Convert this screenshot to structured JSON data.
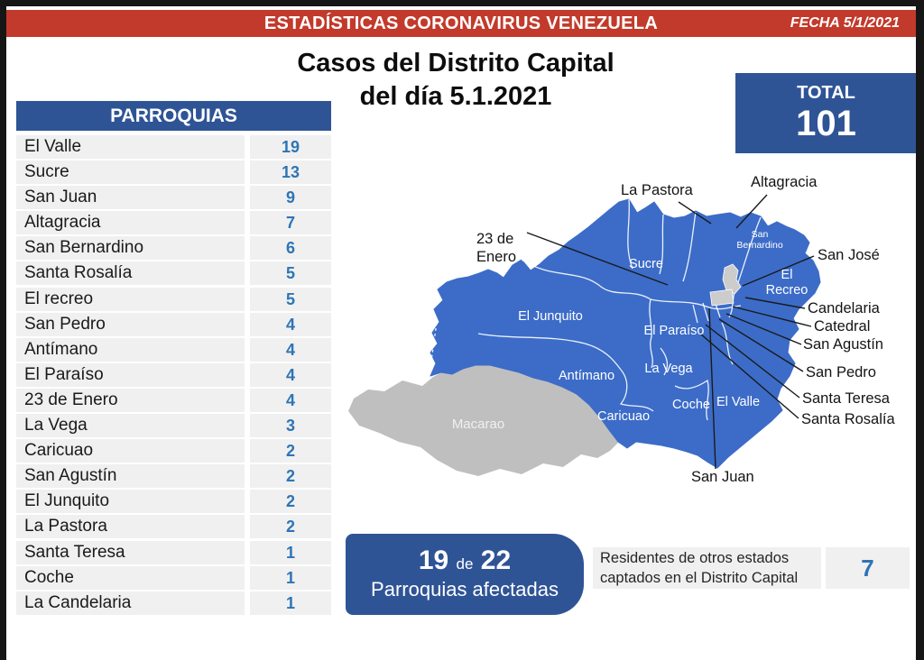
{
  "header": {
    "title": "ESTADÍSTICAS CORONAVIRUS VENEZUELA",
    "date": "FECHA 5/1/2021"
  },
  "title": {
    "line1": "Casos del Distrito Capital",
    "line2": "del día 5.1.2021"
  },
  "total": {
    "label": "TOTAL",
    "value": "101"
  },
  "table": {
    "header": "PARROQUIAS",
    "rows": [
      {
        "name": "El Valle",
        "value": "19"
      },
      {
        "name": "Sucre",
        "value": "13"
      },
      {
        "name": "San Juan",
        "value": "9"
      },
      {
        "name": "Altagracia",
        "value": "7"
      },
      {
        "name": "San Bernardino",
        "value": "6"
      },
      {
        "name": "Santa Rosalía",
        "value": "5"
      },
      {
        "name": "El recreo",
        "value": "5"
      },
      {
        "name": "San Pedro",
        "value": "4"
      },
      {
        "name": "Antímano",
        "value": "4"
      },
      {
        "name": "El Paraíso",
        "value": "4"
      },
      {
        "name": "23 de Enero",
        "value": "4"
      },
      {
        "name": "La Vega",
        "value": "3"
      },
      {
        "name": "Caricuao",
        "value": "2"
      },
      {
        "name": "San Agustín",
        "value": "2"
      },
      {
        "name": "El Junquito",
        "value": "2"
      },
      {
        "name": "La Pastora",
        "value": "2"
      },
      {
        "name": "Santa Teresa",
        "value": "1"
      },
      {
        "name": "Coche",
        "value": "1"
      },
      {
        "name": "La Candelaria",
        "value": "1"
      }
    ]
  },
  "map": {
    "region_labels": [
      {
        "id": "sucre",
        "text": "Sucre",
        "type": "inside"
      },
      {
        "id": "el-junquito",
        "text": "El Junquito",
        "type": "inside"
      },
      {
        "id": "el-paraiso",
        "text": "El Paraíso",
        "type": "inside"
      },
      {
        "id": "antimano",
        "text": "Antímano",
        "type": "inside"
      },
      {
        "id": "la-vega",
        "text": "La Vega",
        "type": "inside"
      },
      {
        "id": "coche",
        "text": "Coche",
        "type": "inside"
      },
      {
        "id": "el-valle",
        "text": "El Valle",
        "type": "inside"
      },
      {
        "id": "caricuao",
        "text": "Caricuao",
        "type": "inside"
      },
      {
        "id": "san-bernardino",
        "text": "San\nBernardino",
        "type": "inside"
      },
      {
        "id": "el-recreo",
        "text": "El\nRecreo",
        "type": "inside"
      },
      {
        "id": "macarao",
        "text": "Macarao",
        "type": "inside"
      },
      {
        "id": "la-pastora",
        "text": "La Pastora",
        "type": "outside"
      },
      {
        "id": "altagracia",
        "text": "Altagracia",
        "type": "outside"
      },
      {
        "id": "23-de-enero",
        "text": "23 de\nEnero",
        "type": "outside"
      },
      {
        "id": "san-jose",
        "text": "San José",
        "type": "outside"
      },
      {
        "id": "candelaria",
        "text": "Candelaria",
        "type": "outside"
      },
      {
        "id": "catedral",
        "text": "Catedral",
        "type": "outside"
      },
      {
        "id": "san-agustin",
        "text": "San Agustín",
        "type": "outside"
      },
      {
        "id": "san-pedro",
        "text": "San Pedro",
        "type": "outside"
      },
      {
        "id": "santa-teresa",
        "text": "Santa Teresa",
        "type": "outside"
      },
      {
        "id": "santa-rosalia",
        "text": "Santa Rosalía",
        "type": "outside"
      },
      {
        "id": "san-juan",
        "text": "San Juan",
        "type": "outside"
      }
    ]
  },
  "footer": {
    "affected_count": "19",
    "affected_conj": "de",
    "affected_total": "22",
    "affected_label": "Parroquias afectadas",
    "residents_line1": "Residentes de otros estados",
    "residents_line2": "captados en el Distrito Capital",
    "residents_value": "7"
  },
  "colors": {
    "header_red": "#C23A2B",
    "panel_blue": "#2F5496",
    "value_blue": "#2E74B5",
    "map_blue": "#3C6CC8",
    "map_gray": "#BFBFBF",
    "row_gray": "#F0F0F0"
  }
}
